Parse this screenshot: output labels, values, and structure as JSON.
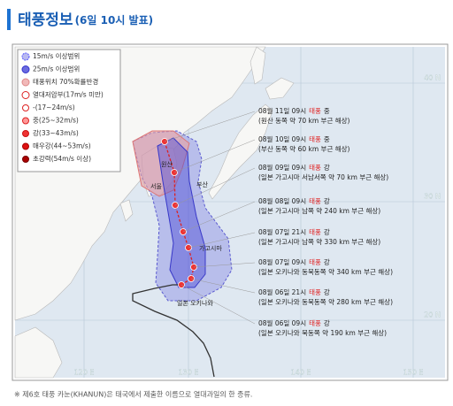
{
  "header": {
    "title": "태풍정보",
    "subtitle": "(6일 10시 발표)"
  },
  "legend": [
    "15m/s 이상범위",
    "25m/s 이상범위",
    "태풍위치 70%확률반경",
    "열대저압부(17m/s 미만)",
    "-(17~24m/s)",
    "중(25~32m/s)",
    "강(33~43m/s)",
    "매우강(44~53m/s)",
    "초강력(54m/s 이상)"
  ],
  "forecasts": [
    {
      "time": "08월 11일 09시",
      "category": "태풍",
      "intensity": "중",
      "location": "(원산 동쪽 약 70 km 부근 해상)"
    },
    {
      "time": "08월 10일 09시",
      "category": "태풍",
      "intensity": "중",
      "location": "(부산 동쪽 약 60 km 부근 해상)"
    },
    {
      "time": "08월 09일 09시",
      "category": "태풍",
      "intensity": "강",
      "location": "(일본 가고시마 서남서쪽 약 70 km 부근 해상)"
    },
    {
      "time": "08월 08일 09시",
      "category": "태풍",
      "intensity": "강",
      "location": "(일본 가고시마 남쪽 약 240 km 부근 해상)"
    },
    {
      "time": "08월 07일 21시",
      "category": "태풍",
      "intensity": "강",
      "location": "(일본 가고시마 남쪽 약 330 km 부근 해상)"
    },
    {
      "time": "08월 07일 09시",
      "category": "태풍",
      "intensity": "강",
      "location": "(일본 오키나와 동북동쪽 약 340 km 부근 해상)"
    },
    {
      "time": "08월 06일 21시",
      "category": "태풍",
      "intensity": "강",
      "location": "(일본 오키나와 동북동쪽 약 280 km 부근 해상)"
    },
    {
      "time": "08월 06일 09시",
      "category": "태풍",
      "intensity": "강",
      "location": "(일본 오키나와 북동쪽 약 190 km 부근 해상)"
    }
  ],
  "map_labels": {
    "latitudes": [
      "40 N",
      "30 N",
      "20 N"
    ],
    "longitudes": [
      "120 E",
      "130 E",
      "140 E",
      "150 E"
    ],
    "places": [
      "원산",
      "서울",
      "부산",
      "가고시마",
      "일본 오키나와"
    ]
  },
  "footnote": "※ 제6호 태풍 카눈(KHANUN)은 태국에서 제출한 이름으로 열대과일의 한 종류."
}
